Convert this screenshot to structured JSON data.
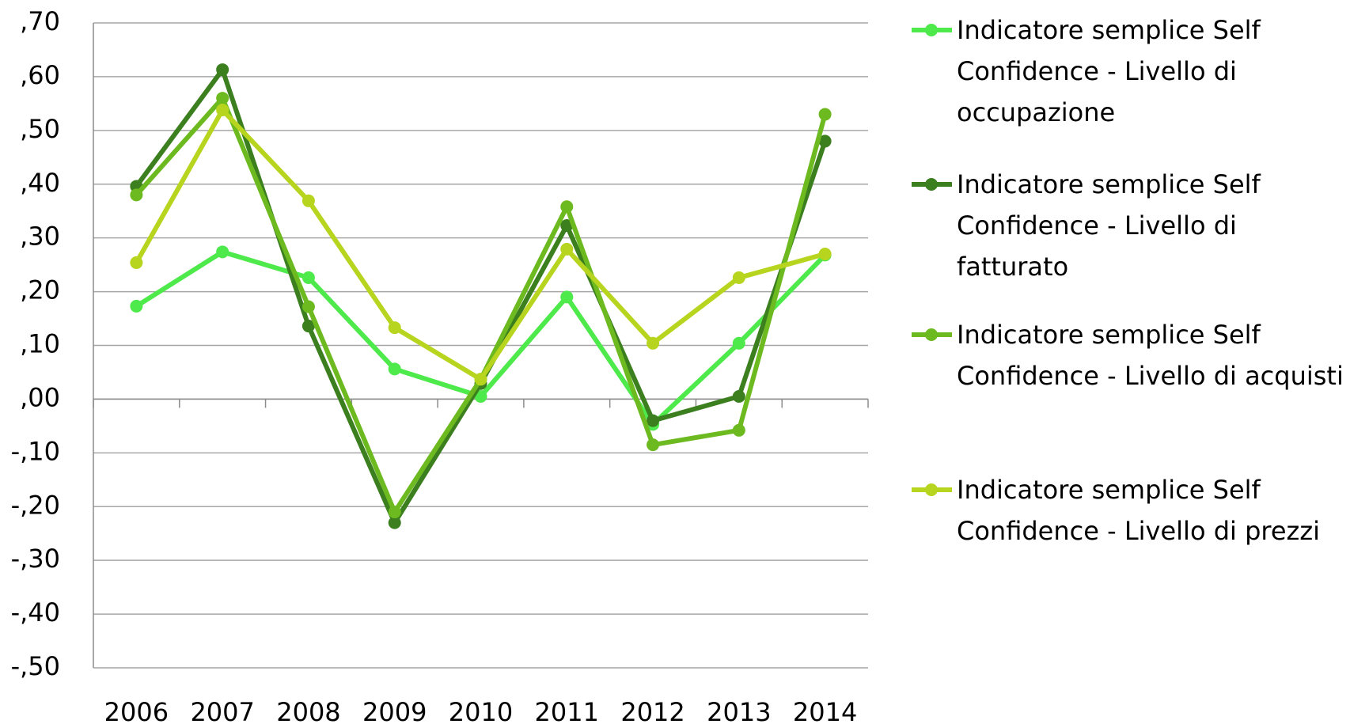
{
  "chart_data": {
    "type": "line",
    "categories": [
      "2006",
      "2007",
      "2008",
      "2009",
      "2010",
      "2011",
      "2012",
      "2013",
      "2014"
    ],
    "series": [
      {
        "name": "Indicatore semplice Self Confidence - Livello di occupazione",
        "color": "#4ee94a",
        "values": [
          0.173,
          0.274,
          0.226,
          0.056,
          0.005,
          0.19,
          -0.047,
          0.104,
          0.268
        ]
      },
      {
        "name": "Indicatore semplice Self Confidence - Livello di fatturato",
        "color": "#3b7f1f",
        "values": [
          0.396,
          0.613,
          0.136,
          -0.23,
          0.029,
          0.323,
          -0.04,
          0.005,
          0.48
        ]
      },
      {
        "name": "Indicatore semplice Self Confidence - Livello di acquisti",
        "color": "#6cba1f",
        "values": [
          0.38,
          0.56,
          0.172,
          -0.21,
          0.037,
          0.358,
          -0.085,
          -0.058,
          0.53
        ]
      },
      {
        "name": "Indicatore semplice Self Confidence - Livello di prezzi",
        "color": "#b7d41f",
        "values": [
          0.254,
          0.538,
          0.369,
          0.133,
          0.037,
          0.279,
          0.104,
          0.226,
          0.27
        ]
      }
    ],
    "ylim": [
      -0.5,
      0.7
    ],
    "yticks": [
      {
        "value": -0.5,
        "label": "-,50"
      },
      {
        "value": -0.4,
        "label": "-,40"
      },
      {
        "value": -0.3,
        "label": "-,30"
      },
      {
        "value": -0.2,
        "label": "-,20"
      },
      {
        "value": -0.1,
        "label": "-,10"
      },
      {
        "value": 0,
        "label": ",00"
      },
      {
        "value": 0.1,
        "label": ",10"
      },
      {
        "value": 0.2,
        "label": ",20"
      },
      {
        "value": 0.3,
        "label": ",30"
      },
      {
        "value": 0.4,
        "label": ",40"
      },
      {
        "value": 0.5,
        "label": ",50"
      },
      {
        "value": 0.6,
        "label": ",60"
      },
      {
        "value": 0.7,
        "label": ",70"
      }
    ],
    "grid": true,
    "legend": "right"
  }
}
